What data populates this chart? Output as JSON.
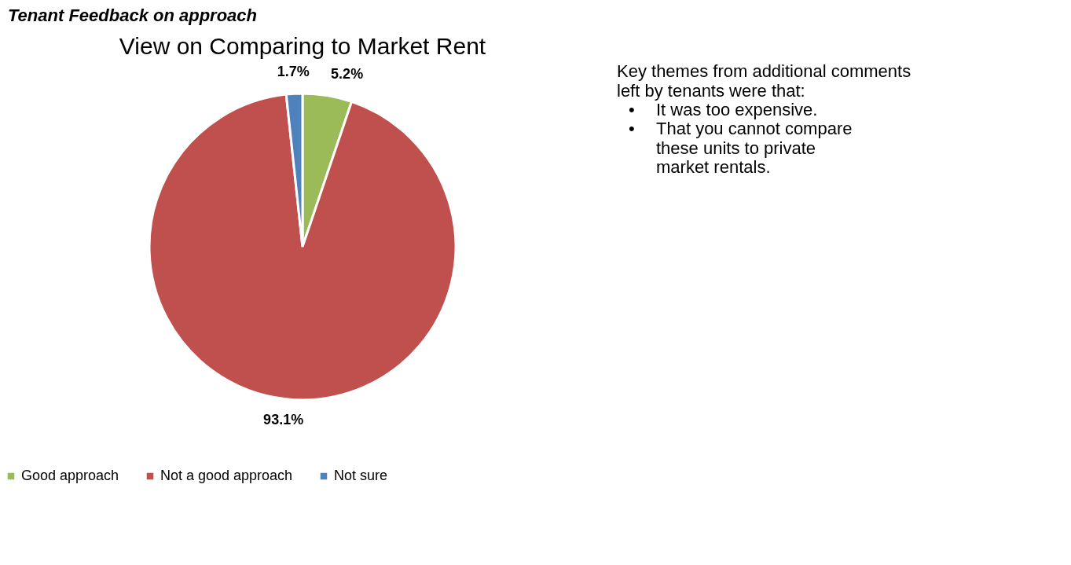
{
  "chart_data": [
    {
      "type": "pie",
      "title": "View on Comparing to Market Rent",
      "annotations": [
        "Tenant Feedback on approach"
      ],
      "categories": [
        "Good approach",
        "Not a good approach",
        "Not sure"
      ],
      "values": [
        5.2,
        93.1,
        1.7
      ],
      "colors": [
        "#9bbb59",
        "#c0504d",
        "#4f81bd"
      ],
      "value_labels": [
        "5.2%",
        "93.1%",
        "1.7%"
      ],
      "legend": "bottom"
    },
    {
      "type": "other",
      "annotations": [
        "Key themes from additional comments left by tenants were that:",
        "•\tIt was too expensive.",
        "•\tThat you cannot compare these units to private market rentals."
      ]
    }
  ]
}
